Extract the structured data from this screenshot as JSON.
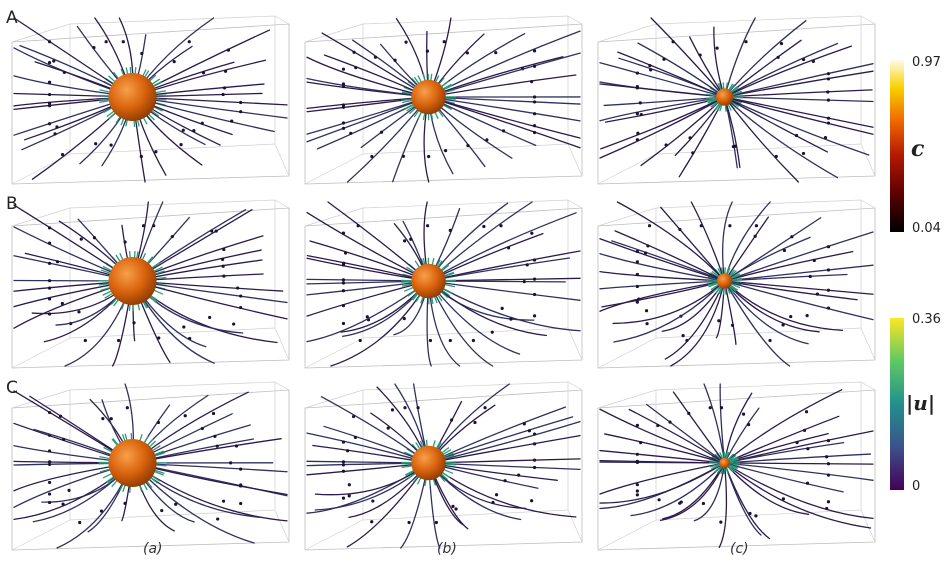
{
  "rows": [
    {
      "label": "A",
      "sphere_size": [
        1.0,
        0.72,
        0.36
      ]
    },
    {
      "label": "B",
      "sphere_size": [
        1.0,
        0.72,
        0.32
      ]
    },
    {
      "label": "C",
      "sphere_size": [
        1.0,
        0.72,
        0.22
      ]
    }
  ],
  "columns": [
    {
      "label": "(a)"
    },
    {
      "label": "(b)"
    },
    {
      "label": "(c)"
    }
  ],
  "colorbar_c": {
    "title": "c",
    "max": "0.97",
    "min": "0.04"
  },
  "colorbar_u": {
    "title": "|u|",
    "max": "0.36",
    "min": "0"
  },
  "colors": {
    "sphere": "#d9620c",
    "sphere_highlight": "#f59a3c",
    "box_line": "#b8b8b8",
    "streamline_dark": "#2b1a4a"
  }
}
